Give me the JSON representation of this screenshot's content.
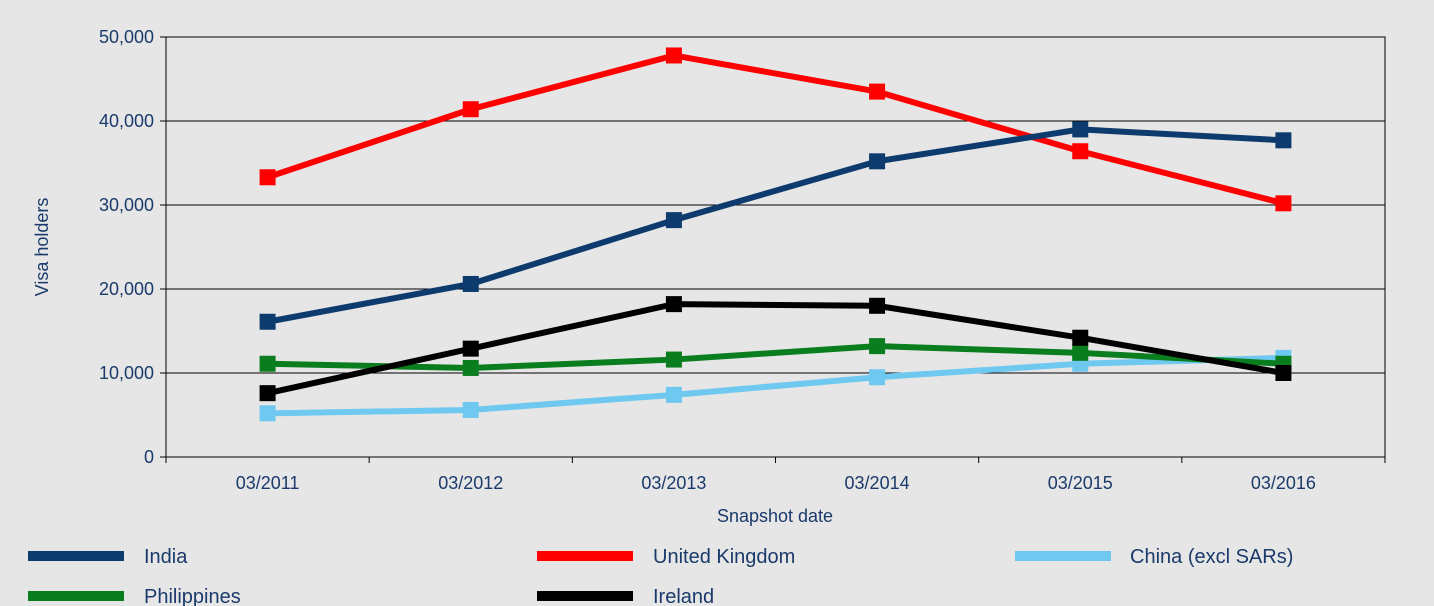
{
  "chart_data": {
    "type": "line",
    "xlabel": "Snapshot date",
    "ylabel": "Visa holders",
    "categories": [
      "03/2011",
      "03/2012",
      "03/2013",
      "03/2014",
      "03/2015",
      "03/2016"
    ],
    "ylim": [
      0,
      50000
    ],
    "yticks": [
      0,
      10000,
      20000,
      30000,
      40000,
      50000
    ],
    "ytick_labels": [
      "0",
      "10,000",
      "20,000",
      "30,000",
      "40,000",
      "50,000"
    ],
    "grid": "horizontal",
    "legend_position": "bottom",
    "series": [
      {
        "name": "India",
        "color": "#0d3b6e",
        "values": [
          16100,
          20600,
          28200,
          35200,
          39000,
          37700
        ]
      },
      {
        "name": "United Kingdom",
        "color": "#ff0000",
        "values": [
          33300,
          41400,
          47800,
          43500,
          36400,
          30200
        ]
      },
      {
        "name": "China (excl SARs)",
        "color": "#6ec8f0",
        "values": [
          5200,
          5600,
          7400,
          9500,
          11100,
          11800
        ]
      },
      {
        "name": "Philippines",
        "color": "#0a7d1e",
        "values": [
          11100,
          10600,
          11600,
          13200,
          12400,
          11100
        ]
      },
      {
        "name": "Ireland",
        "color": "#000000",
        "values": [
          7600,
          12900,
          18200,
          18000,
          14200,
          10000
        ]
      }
    ]
  },
  "colors": {
    "plot_background": "#e6e6e6",
    "axis_text": "#1a3a6b"
  }
}
